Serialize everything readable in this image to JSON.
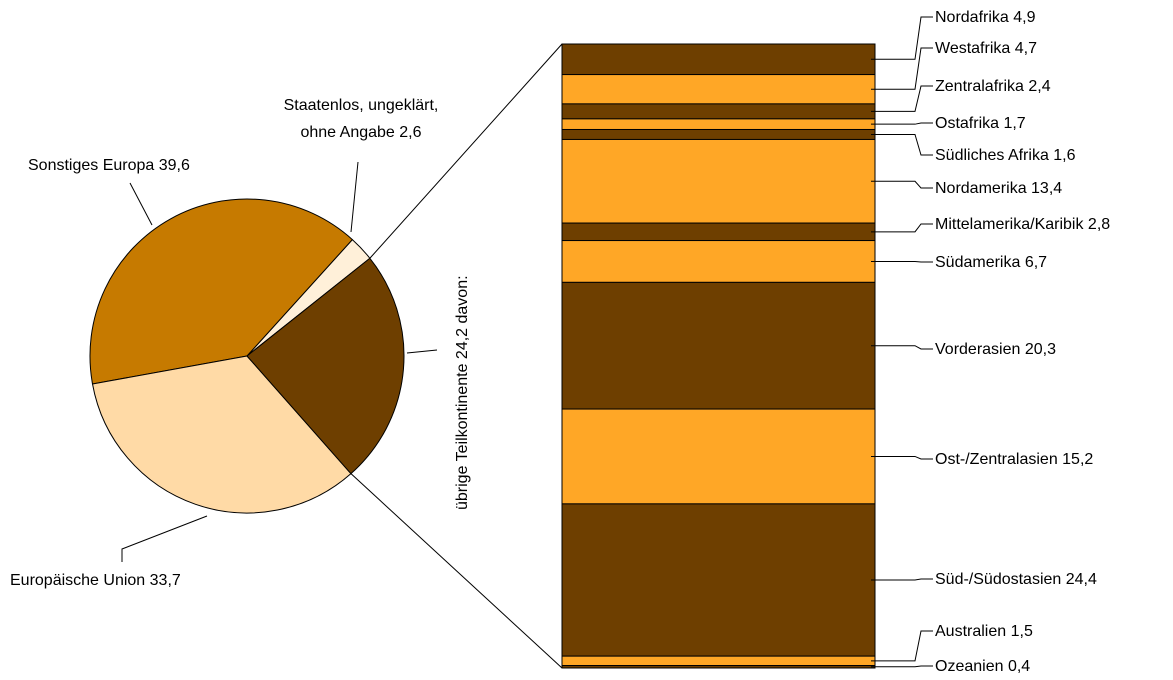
{
  "chart_data": [
    {
      "type": "pie",
      "slices": [
        {
          "label": "Staatenlos, ungeklärt, ohne Angabe",
          "value": 2.6,
          "color": "#FFF0D9"
        },
        {
          "label": "Sonstiges Europa",
          "value": 39.6,
          "color": "#C67A00"
        },
        {
          "label": "Europäische Union",
          "value": 33.7,
          "color": "#FFDAA6"
        },
        {
          "label": "übrige Teilkontinente",
          "value": 24.2,
          "color": "#6E3F00",
          "exploded_to_bar": true
        }
      ],
      "slice_label_texts": [
        [
          "Staatenlos, ungeklärt,",
          "ohne Angabe 2,6"
        ],
        [
          "Sonstiges Europa 39,6"
        ],
        [
          "Europäische Union 33,7"
        ]
      ],
      "exploded_label": "übrige Teilkontinente 24,2 davon:",
      "title": ""
    },
    {
      "type": "bar",
      "stacked": true,
      "orientation": "vertical",
      "colors": {
        "dark": "#6E3F00",
        "light": "#FFA726"
      },
      "segments": [
        {
          "label": "Nordafrika",
          "value": 4.9,
          "text": "Nordafrika 4,9",
          "shade": "dark"
        },
        {
          "label": "Westafrika",
          "value": 4.7,
          "text": "Westafrika 4,7",
          "shade": "light"
        },
        {
          "label": "Zentralafrika",
          "value": 2.4,
          "text": "Zentralafrika 2,4",
          "shade": "dark"
        },
        {
          "label": "Ostafrika",
          "value": 1.7,
          "text": "Ostafrika 1,7",
          "shade": "light"
        },
        {
          "label": "Südliches Afrika",
          "value": 1.6,
          "text": "Südliches Afrika 1,6",
          "shade": "dark"
        },
        {
          "label": "Nordamerika",
          "value": 13.4,
          "text": "Nordamerika 13,4",
          "shade": "light"
        },
        {
          "label": "Mittelamerika/Karibik",
          "value": 2.8,
          "text": "Mittelamerika/Karibik 2,8",
          "shade": "dark"
        },
        {
          "label": "Südamerika",
          "value": 6.7,
          "text": "Südamerika 6,7",
          "shade": "light"
        },
        {
          "label": "Vorderasien",
          "value": 20.3,
          "text": "Vorderasien 20,3",
          "shade": "dark"
        },
        {
          "label": "Ost-/Zentralasien",
          "value": 15.2,
          "text": "Ost-/Zentralasien 15,2",
          "shade": "light"
        },
        {
          "label": "Süd-/Südostasien",
          "value": 24.4,
          "text": "Süd-/Südostasien 24,4",
          "shade": "dark"
        },
        {
          "label": "Australien",
          "value": 1.5,
          "text": "Australien 1,5",
          "shade": "light"
        },
        {
          "label": "Ozeanien",
          "value": 0.4,
          "text": "Ozeanien 0,4",
          "shade": "dark"
        }
      ]
    }
  ]
}
